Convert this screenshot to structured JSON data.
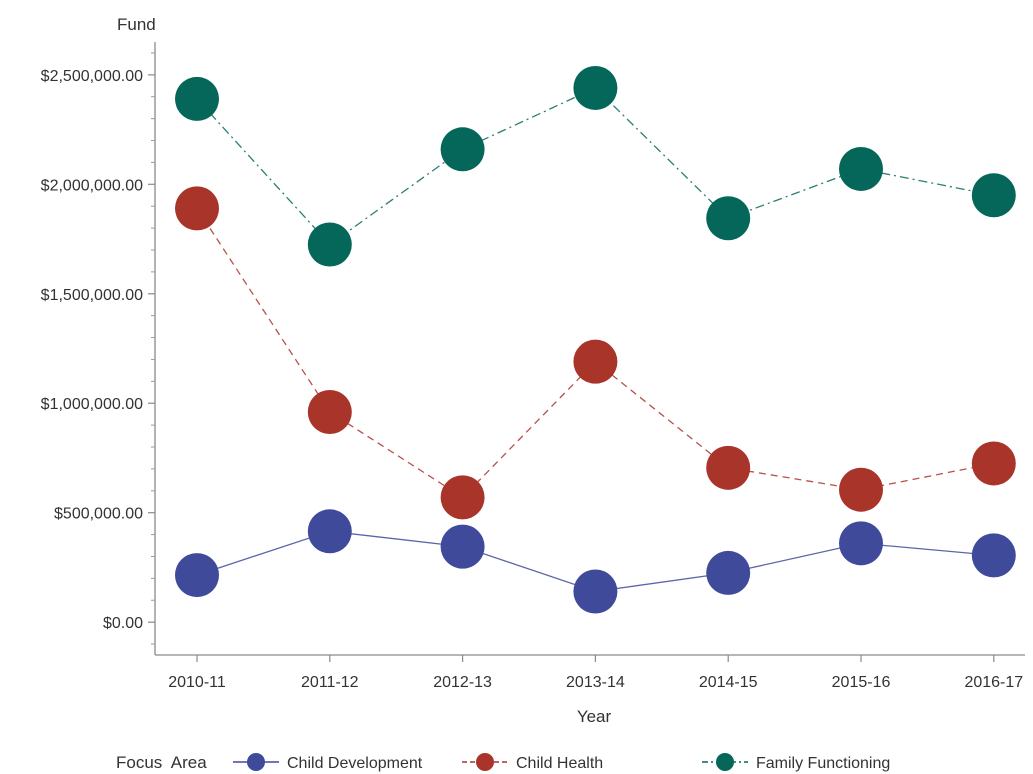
{
  "chart_data": {
    "type": "line",
    "ylabel": "Fund",
    "xlabel": "Year",
    "categories": [
      "2010-11",
      "2011-12",
      "2012-13",
      "2013-14",
      "2014-15",
      "2015-16",
      "2016-17"
    ],
    "ylim": [
      -150000,
      2650000
    ],
    "yticks": [
      0,
      500000,
      1000000,
      1500000,
      2000000,
      2500000
    ],
    "ytick_labels": [
      "$0.00",
      "$500,000.00",
      "$1,000,000.00",
      "$1,500,000.00",
      "$2,000,000.00",
      "$2,500,000.00"
    ],
    "legend_title": "Focus  Area",
    "legend_position": "bottom",
    "grid": false,
    "series": [
      {
        "name": "Child Development",
        "color": "#3f4a9b",
        "line_style": "solid",
        "values": [
          215000,
          415000,
          345000,
          140000,
          225000,
          360000,
          305000
        ]
      },
      {
        "name": "Child Health",
        "color": "#a8342a",
        "line_style": "dashed",
        "values": [
          1890000,
          960000,
          570000,
          1190000,
          705000,
          605000,
          725000
        ]
      },
      {
        "name": "Family Functioning",
        "color": "#05675a",
        "line_style": "dash-dot",
        "values": [
          2390000,
          1725000,
          2160000,
          2440000,
          1845000,
          2070000,
          1950000
        ]
      }
    ]
  }
}
